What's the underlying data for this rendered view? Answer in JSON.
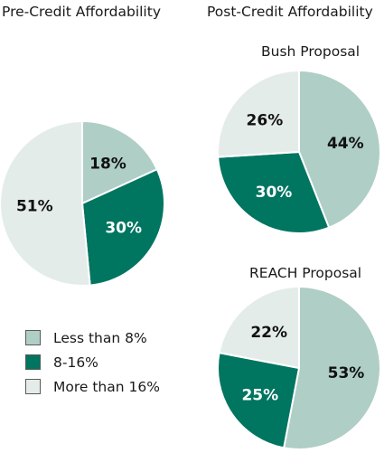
{
  "titles": {
    "pre": "Pre-Credit Affordability",
    "post": "Post-Credit Affordability",
    "bush": "Bush Proposal",
    "reach": "REACH Proposal"
  },
  "categories": [
    "Less than 8%",
    "8-16%",
    "More than 16%"
  ],
  "colors": {
    "Less than 8%": "#aecec6",
    "8-16%": "#007560",
    "More than 16%": "#e4ece9",
    "stroke": "#ffffff"
  },
  "label_colors": {
    "Less than 8%": "#111111",
    "8-16%": "#ffffff",
    "More than 16%": "#111111"
  },
  "legend": {
    "items": [
      {
        "label": "Less than 8%",
        "color": "#aecec6"
      },
      {
        "label": "8-16%",
        "color": "#007560"
      },
      {
        "label": "More than 16%",
        "color": "#e4ece9"
      }
    ]
  },
  "chart_data": [
    {
      "type": "pie",
      "title": "Pre-Credit Affordability",
      "categories": [
        "Less than 8%",
        "8-16%",
        "More than 16%"
      ],
      "values": [
        18,
        30,
        51
      ],
      "labels": [
        "18%",
        "30%",
        "51%"
      ]
    },
    {
      "type": "pie",
      "title": "Bush Proposal",
      "categories": [
        "Less than 8%",
        "8-16%",
        "More than 16%"
      ],
      "values": [
        44,
        30,
        26
      ],
      "labels": [
        "44%",
        "30%",
        "26%"
      ]
    },
    {
      "type": "pie",
      "title": "REACH Proposal",
      "categories": [
        "Less than 8%",
        "8-16%",
        "More than 16%"
      ],
      "values": [
        53,
        25,
        22
      ],
      "labels": [
        "53%",
        "25%",
        "22%"
      ]
    }
  ]
}
